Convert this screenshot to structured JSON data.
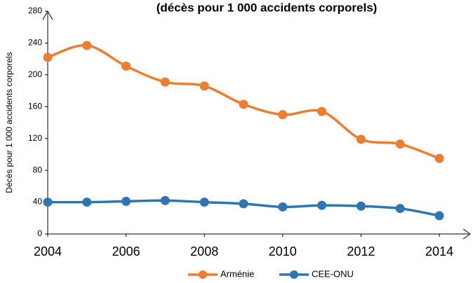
{
  "chart_data": {
    "type": "line",
    "title": "(décès pour 1 000 accidents corporels)",
    "y_label": "Décès pour 1 000 accidents corporels",
    "x": [
      2004,
      2005,
      2006,
      2007,
      2008,
      2009,
      2010,
      2011,
      2012,
      2013,
      2014
    ],
    "series": [
      {
        "name": "Arménie",
        "color": "#ed7d31",
        "values": [
          222,
          237,
          211,
          191,
          186,
          163,
          150,
          154,
          119,
          113,
          95
        ]
      },
      {
        "name": "CEE-ONU",
        "color": "#2e75b6",
        "values": [
          40,
          40,
          41,
          42,
          40,
          38,
          34,
          36,
          35,
          32,
          23
        ]
      }
    ],
    "xlim": [
      2004,
      2014
    ],
    "xticks": [
      2004,
      2006,
      2008,
      2010,
      2012,
      2014
    ],
    "ylim": [
      0,
      280
    ],
    "yticks": [
      0,
      40,
      80,
      120,
      160,
      200,
      240,
      280
    ],
    "grid": false,
    "legend": "bottom"
  }
}
